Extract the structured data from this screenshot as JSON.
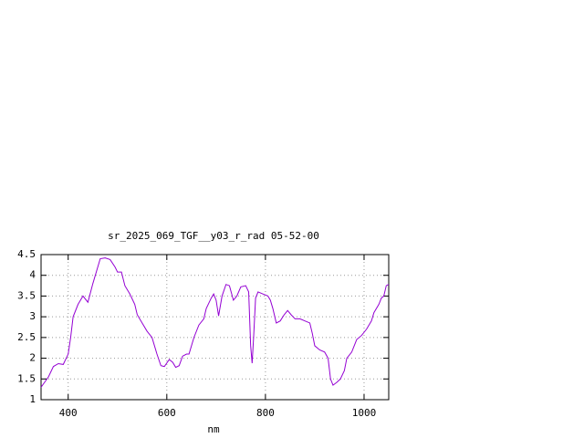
{
  "chart_data": {
    "type": "line",
    "title": "sr_2025_069_TGF__y03_r_rad 05-52-00",
    "x_label": "nm",
    "xlim": [
      345,
      1050
    ],
    "ylim": [
      1,
      4.5
    ],
    "xticks": [
      400,
      600,
      800,
      1000
    ],
    "yticks": [
      1,
      1.5,
      2,
      2.5,
      3,
      3.5,
      4,
      {
        "value": 4.5,
        "label": "4.5"
      }
    ],
    "grid": true,
    "series": [
      {
        "color": "#9400d3",
        "x": [
          345,
          360,
          370,
          380,
          390,
          400,
          405,
          410,
          420,
          430,
          440,
          450,
          460,
          465,
          475,
          485,
          495,
          500,
          508,
          515,
          525,
          535,
          540,
          550,
          560,
          570,
          580,
          588,
          595,
          605,
          612,
          618,
          625,
          632,
          640,
          645,
          655,
          665,
          675,
          680,
          690,
          695,
          700,
          705,
          712,
          720,
          727,
          735,
          742,
          750,
          760,
          766,
          770,
          773,
          776,
          780,
          785,
          795,
          805,
          810,
          815,
          822,
          830,
          838,
          845,
          852,
          860,
          870,
          880,
          890,
          895,
          900,
          910,
          920,
          927,
          932,
          937,
          945,
          952,
          960,
          965,
          975,
          985,
          995,
          1005,
          1015,
          1020,
          1030,
          1035,
          1040,
          1045,
          1050
        ],
        "values": [
          1.3,
          1.55,
          1.8,
          1.87,
          1.85,
          2.1,
          2.5,
          3.0,
          3.3,
          3.5,
          3.35,
          3.8,
          4.2,
          4.4,
          4.42,
          4.38,
          4.2,
          4.08,
          4.08,
          3.75,
          3.55,
          3.3,
          3.05,
          2.85,
          2.65,
          2.5,
          2.1,
          1.82,
          1.8,
          1.97,
          1.9,
          1.78,
          1.82,
          2.05,
          2.1,
          2.1,
          2.5,
          2.8,
          2.95,
          3.2,
          3.45,
          3.55,
          3.4,
          3.02,
          3.5,
          3.78,
          3.75,
          3.4,
          3.5,
          3.72,
          3.75,
          3.6,
          2.3,
          1.88,
          2.5,
          3.45,
          3.6,
          3.55,
          3.5,
          3.4,
          3.2,
          2.85,
          2.9,
          3.05,
          3.15,
          3.05,
          2.95,
          2.95,
          2.9,
          2.85,
          2.6,
          2.3,
          2.2,
          2.15,
          2.0,
          1.5,
          1.35,
          1.42,
          1.5,
          1.7,
          2.0,
          2.15,
          2.45,
          2.55,
          2.7,
          2.9,
          3.1,
          3.3,
          3.45,
          3.5,
          3.75,
          3.78
        ]
      }
    ]
  }
}
